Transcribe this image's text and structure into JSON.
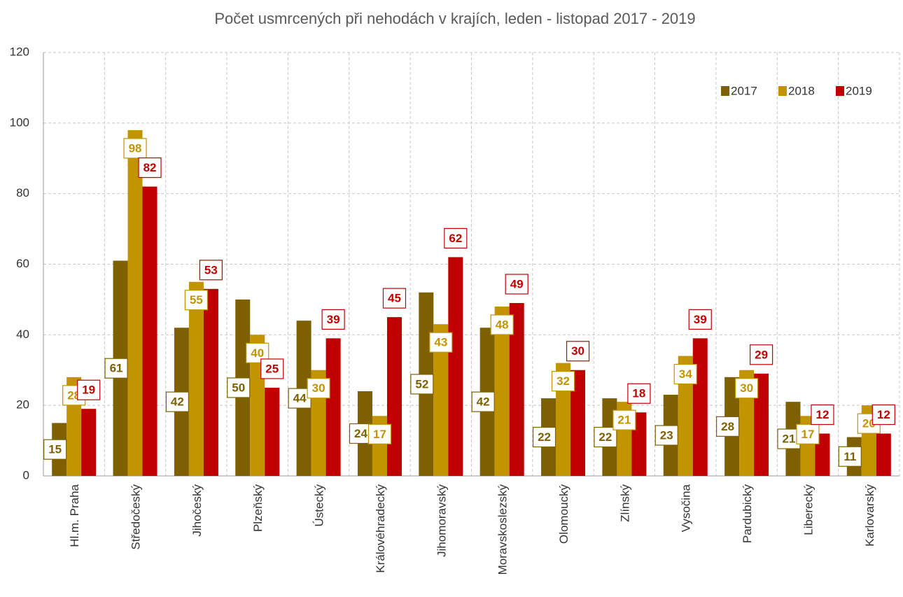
{
  "chart_data": {
    "type": "bar",
    "title": "Počet usmrcených při nehodách v krajích, leden - listopad 2017 - 2019",
    "categories": [
      "Hl.m. Praha",
      "Středočeský",
      "Jihočeský",
      "Plzeňský",
      "Ústecký",
      "Královéhradecký",
      "Jihomoravský",
      "Moravskoslezský",
      "Olomoucký",
      "Zlínský",
      "Vysočina",
      "Pardubický",
      "Liberecký",
      "Karlovarský"
    ],
    "series": [
      {
        "name": "2017",
        "color": "#7f6000",
        "values": [
          15,
          61,
          42,
          50,
          44,
          24,
          52,
          42,
          22,
          22,
          23,
          28,
          21,
          11
        ]
      },
      {
        "name": "2018",
        "color": "#c29400",
        "values": [
          28,
          98,
          55,
          40,
          30,
          17,
          43,
          48,
          32,
          21,
          34,
          30,
          17,
          20
        ]
      },
      {
        "name": "2019",
        "color": "#c00000",
        "values": [
          19,
          82,
          53,
          25,
          39,
          45,
          62,
          49,
          30,
          18,
          39,
          29,
          12,
          12
        ]
      }
    ],
    "ylim": [
      0,
      120
    ],
    "yticks": [
      0,
      20,
      40,
      60,
      80,
      100,
      120
    ],
    "grid": true,
    "legend": "top-right"
  }
}
